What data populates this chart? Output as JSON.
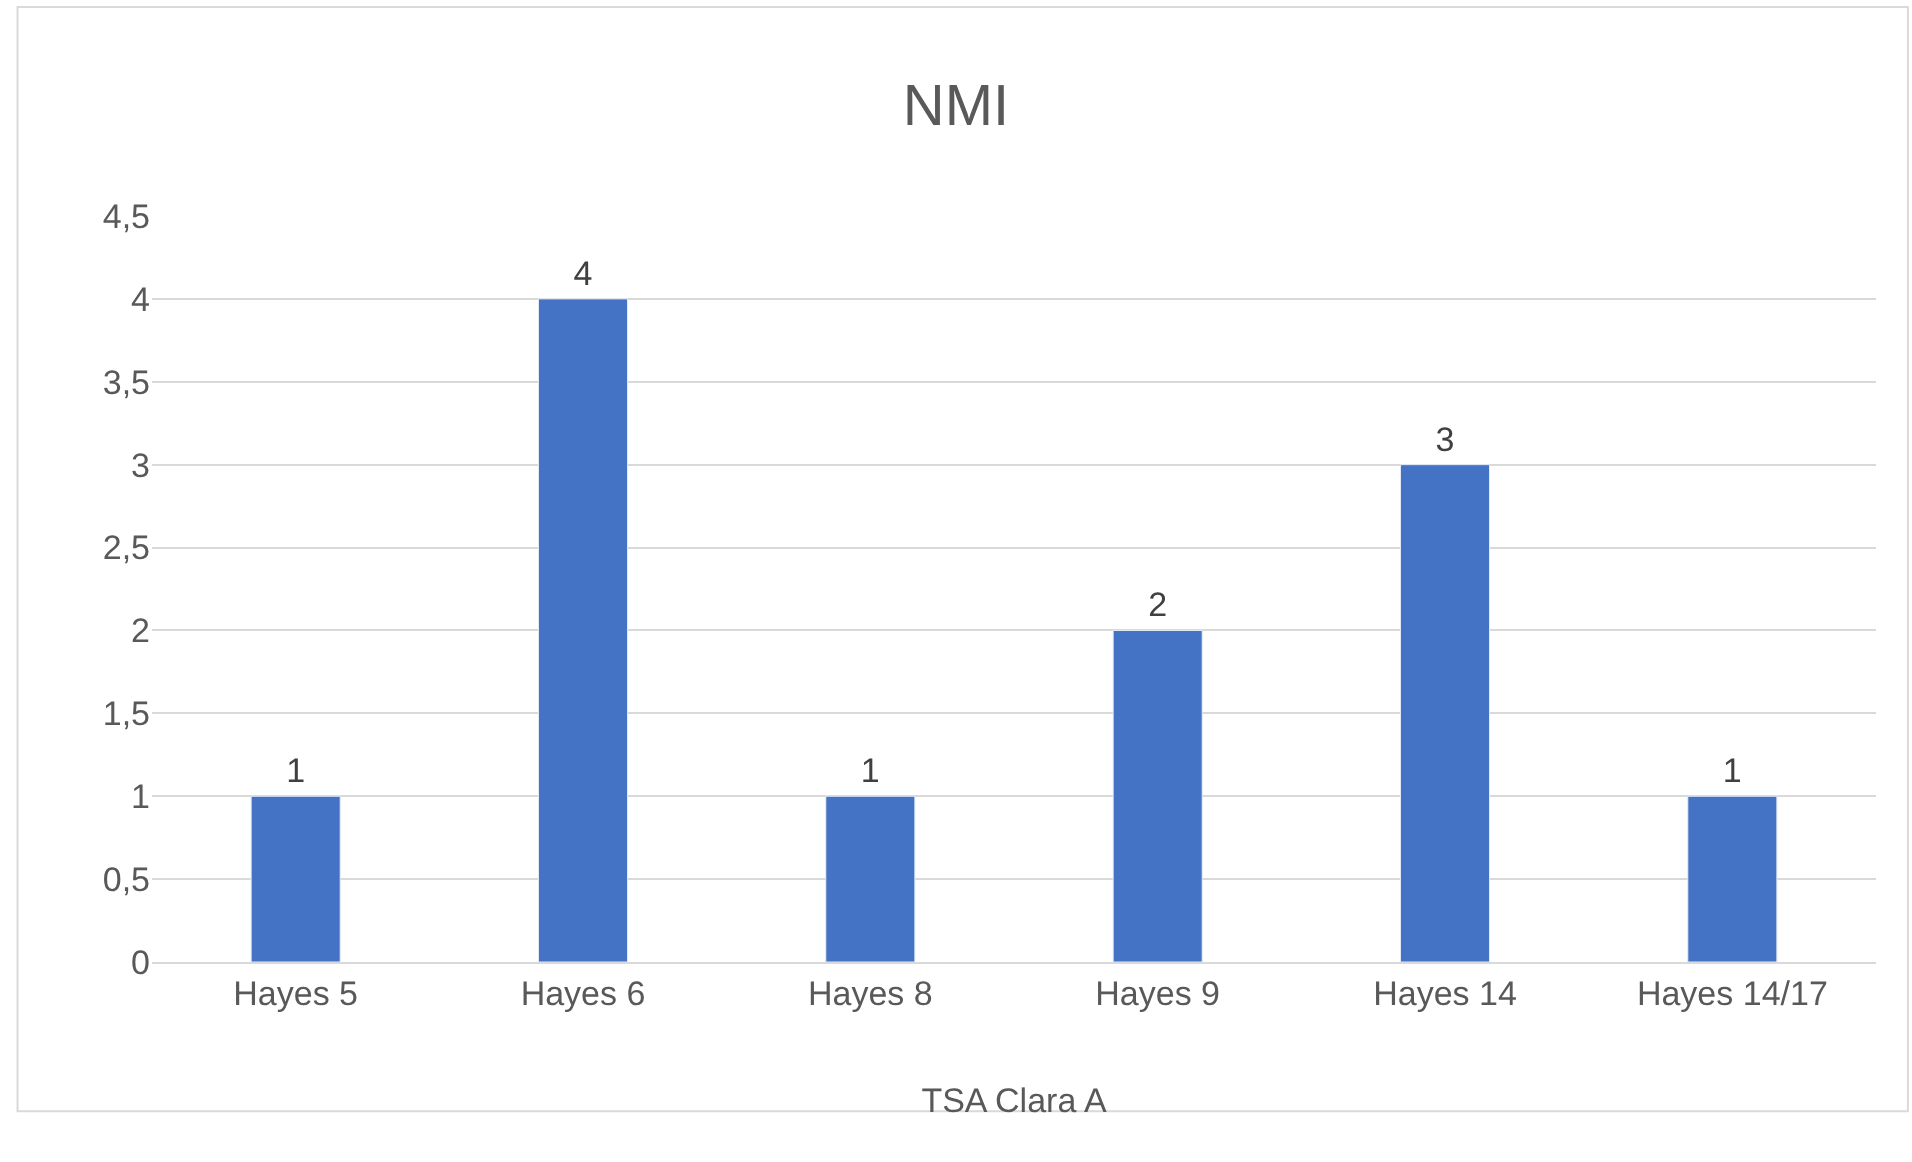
{
  "chart_data": {
    "type": "bar",
    "title": "NMI",
    "xlabel": "TSA Clara A",
    "categories": [
      "Hayes 5",
      "Hayes 6",
      "Hayes 8",
      "Hayes 9",
      "Hayes 14",
      "Hayes 14/17"
    ],
    "values": [
      1,
      4,
      1,
      2,
      3,
      1
    ],
    "color": "#4472c4",
    "ylim": [
      0,
      4.5
    ],
    "yticks": [
      0,
      {
        "value": 0.5,
        "label": "0,5"
      },
      1,
      {
        "value": 1.5,
        "label": "1,5"
      },
      2,
      {
        "value": 2.5,
        "label": "2,5"
      },
      3,
      {
        "value": 3.5,
        "label": "3,5"
      },
      4,
      {
        "value": 4.5,
        "label": "4,5"
      }
    ],
    "grid": "y",
    "data_labels": true,
    "legend": false
  }
}
